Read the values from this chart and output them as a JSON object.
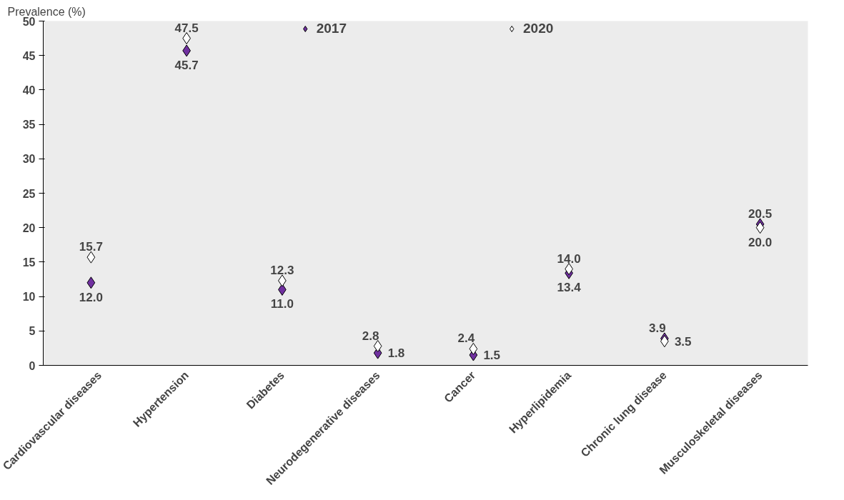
{
  "chart_data": {
    "type": "scatter",
    "ylabel": "Prevalence (%)",
    "categories": [
      "Cardiovascular diseases",
      "Hypertension",
      "Diabetes",
      "Neurodegenerative diseases",
      "Cancer",
      "Hyperlipidemia",
      "Chronic lung disease",
      "Musculoskeletal diseases"
    ],
    "series": [
      {
        "name": "2017",
        "color": "#7030a0",
        "values": [
          12.0,
          45.7,
          11.0,
          1.8,
          1.5,
          13.4,
          3.9,
          20.5
        ],
        "value_labels": [
          "12.0",
          "45.7",
          "11.0",
          "1.8",
          "1.5",
          "13.4",
          "3.9",
          "20.5"
        ]
      },
      {
        "name": "2020",
        "color": "#ffffff",
        "values": [
          15.7,
          47.5,
          12.3,
          2.8,
          2.4,
          14.0,
          3.5,
          20.0
        ],
        "value_labels": [
          "15.7",
          "47.5",
          "12.3",
          "2.8",
          "2.4",
          "14.0",
          "3.5",
          "20.0"
        ]
      }
    ],
    "ylim": [
      0,
      50
    ],
    "yticks": [
      0,
      5,
      10,
      15,
      20,
      25,
      30,
      35,
      40,
      45,
      50
    ],
    "marker": "diamond",
    "legend": "top",
    "grid": false
  }
}
